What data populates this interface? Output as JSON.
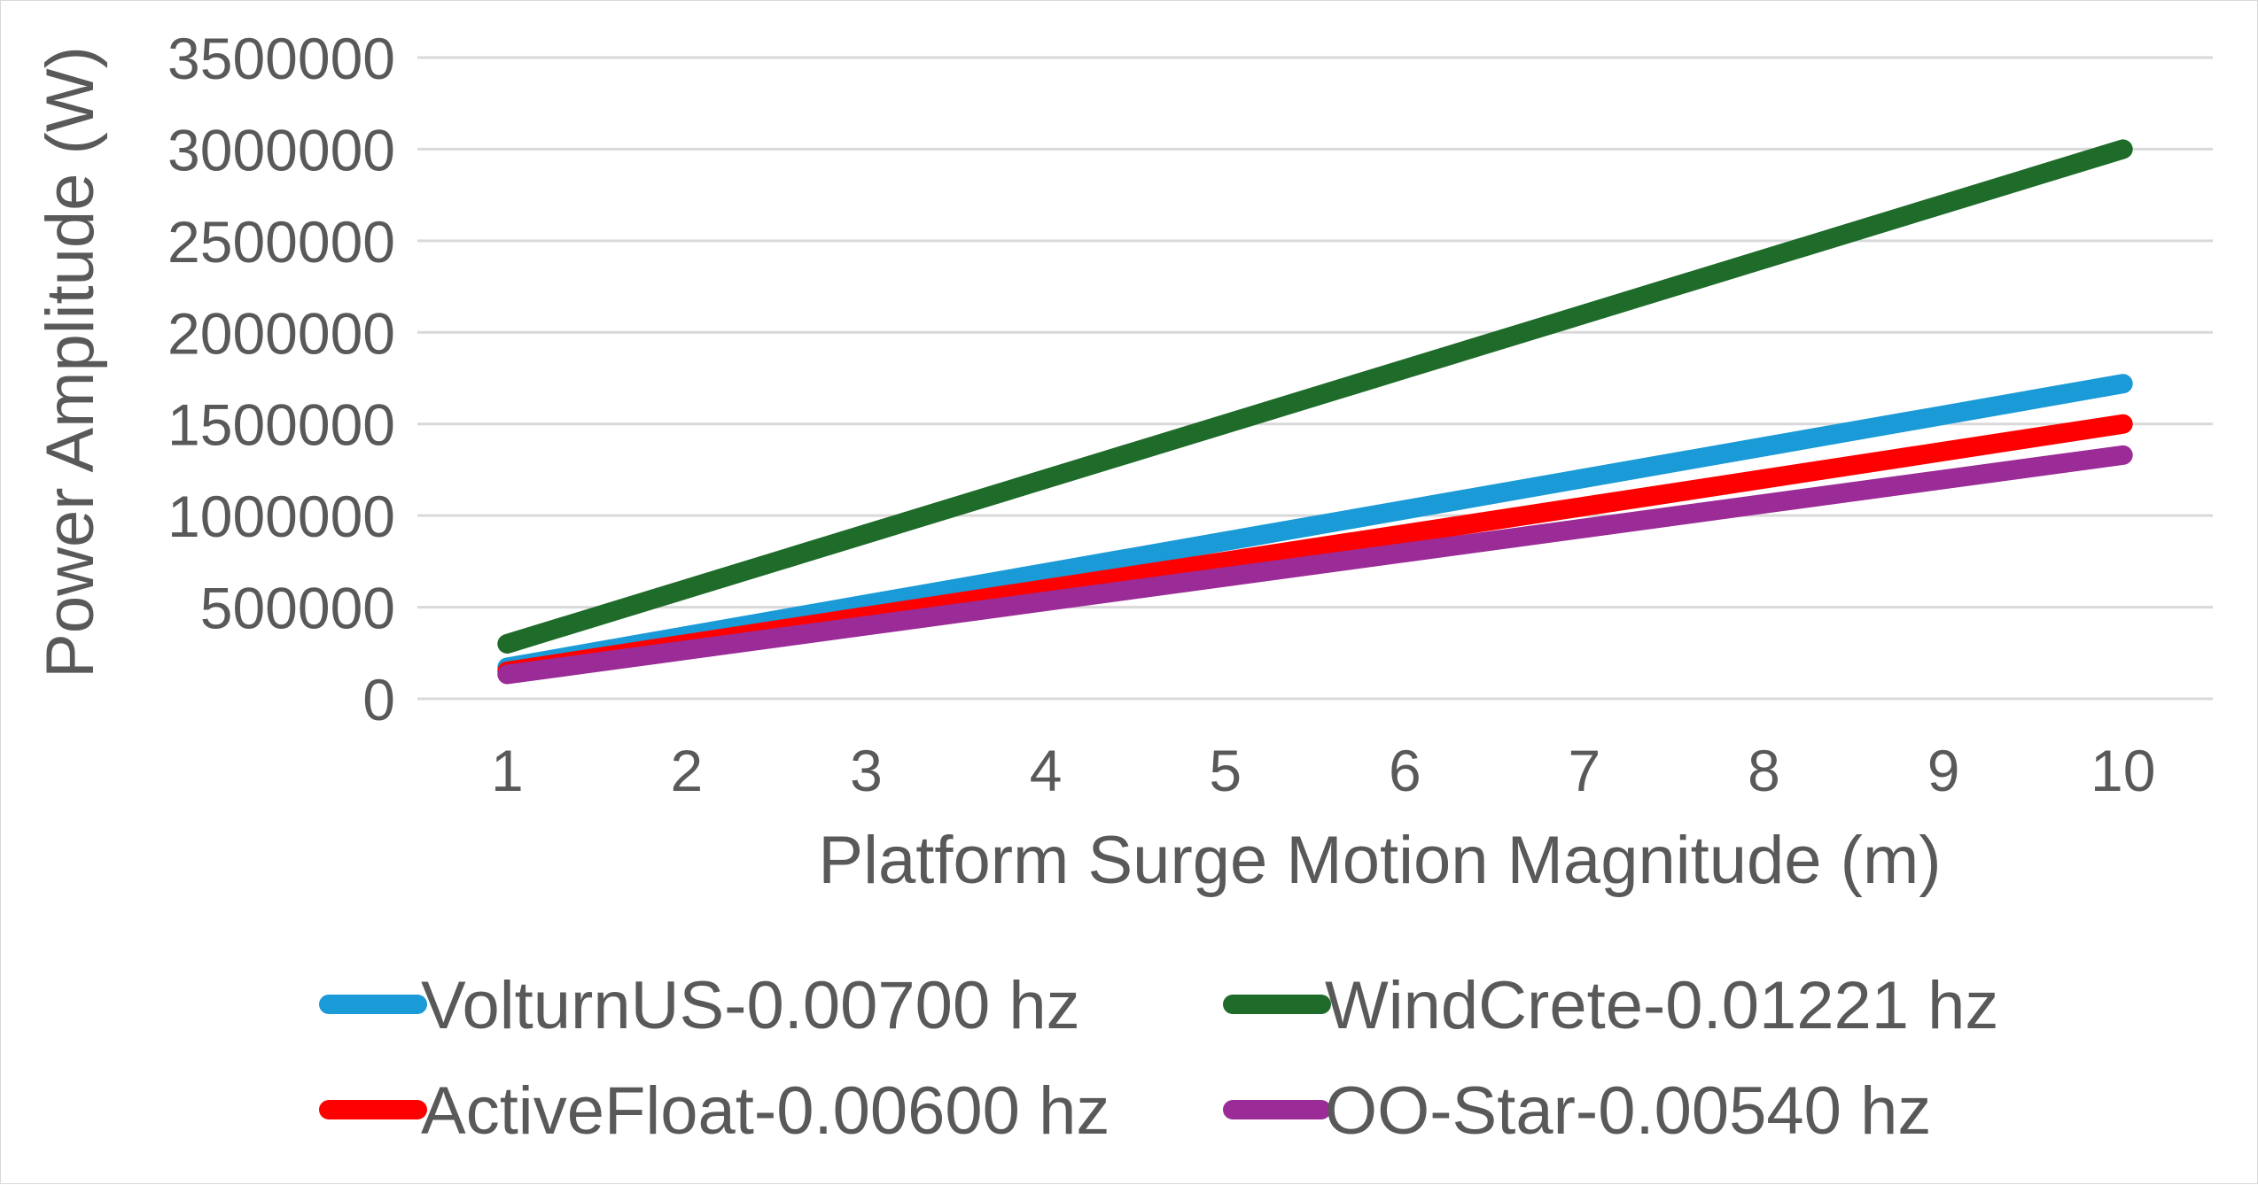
{
  "chart_data": {
    "type": "line",
    "title": "",
    "xlabel": "Platform Surge Motion Magnitude  (m)",
    "ylabel": "Power Amplitude  (W)",
    "x": [
      1,
      2,
      3,
      4,
      5,
      6,
      7,
      8,
      9,
      10
    ],
    "x_tick_labels": [
      "1",
      "2",
      "3",
      "4",
      "5",
      "6",
      "7",
      "8",
      "9",
      "10"
    ],
    "y_tick_labels": [
      "0",
      "500000",
      "1000000",
      "1500000",
      "2000000",
      "2500000",
      "3000000",
      "3500000"
    ],
    "ylim": [
      0,
      3500000
    ],
    "grid": "horizontal",
    "legend_position": "bottom",
    "series": [
      {
        "name": "VolturnUS-0.00700 hz",
        "color": "#1a9ad6",
        "values": [
          172000,
          344000,
          516000,
          688000,
          860000,
          1032000,
          1204000,
          1376000,
          1548000,
          1720000
        ]
      },
      {
        "name": "WindCrete-0.01221 hz",
        "color": "#1e6b2a",
        "values": [
          300000,
          600000,
          900000,
          1200000,
          1500000,
          1800000,
          2100000,
          2400000,
          2700000,
          3000000
        ]
      },
      {
        "name": "ActiveFloat-0.00600 hz",
        "color": "#ff0000",
        "values": [
          150000,
          300000,
          450000,
          600000,
          750000,
          900000,
          1050000,
          1200000,
          1350000,
          1500000
        ]
      },
      {
        "name": "OO-Star-0.00540 hz",
        "color": "#9b2b96",
        "values": [
          133000,
          266000,
          399000,
          532000,
          665000,
          798000,
          931000,
          1064000,
          1197000,
          1330000
        ]
      }
    ]
  }
}
